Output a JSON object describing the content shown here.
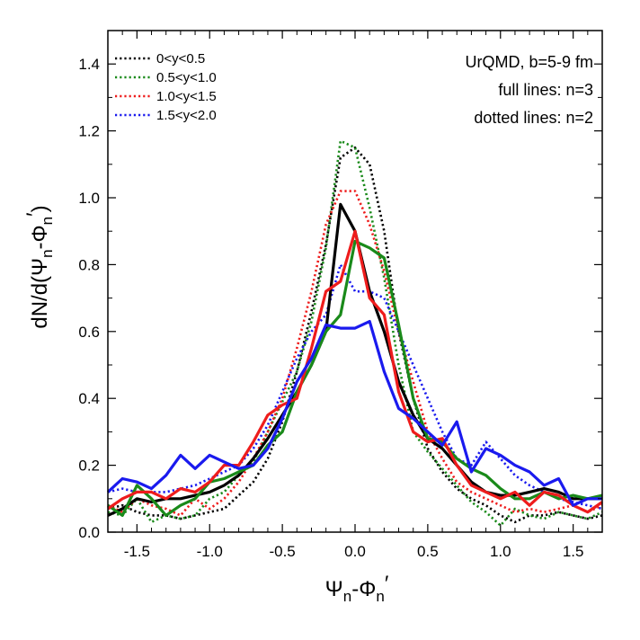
{
  "chart_data": {
    "type": "line",
    "xlabel": {
      "main": "Ψ",
      "sub1": "n",
      "mid": "-Φ",
      "sub2": "n",
      "prime": "′"
    },
    "ylabel": {
      "pre": "dN/d(Ψ",
      "sub1": "n",
      "mid": "-Φ",
      "sub2": "n",
      "prime": "′",
      "post": ")"
    },
    "xlim": [
      -1.7,
      1.7
    ],
    "ylim": [
      0,
      1.5
    ],
    "xticks": [
      -1.5,
      -1.0,
      -0.5,
      0.0,
      0.5,
      1.0,
      1.5
    ],
    "xtick_labels": [
      "-1.5",
      "-1.0",
      "-0.5",
      "0.0",
      "0.5",
      "1.0",
      "1.5"
    ],
    "yticks": [
      0,
      0.2,
      0.4,
      0.6,
      0.8,
      1.0,
      1.2,
      1.4
    ],
    "ytick_labels": [
      "0.0",
      "0.2",
      "0.4",
      "0.6",
      "0.8",
      "1.0",
      "1.2",
      "1.4"
    ],
    "legend_position": "top-left",
    "legend": [
      {
        "label": "0<y<0.5",
        "color": "#000000"
      },
      {
        "label": "0.5<y<1.0",
        "color": "#1a8a1a"
      },
      {
        "label": "1.0<y<1.5",
        "color": "#ee1c1c"
      },
      {
        "label": "1.5<y<2.0",
        "color": "#1a1aee"
      }
    ],
    "annotations": [
      "UrQMD, b=5-9 fm",
      "full lines: n=3",
      "dotted lines: n=2"
    ],
    "series": [
      {
        "color": "#000000",
        "style": "dotted",
        "x": [
          -1.7,
          -1.6,
          -1.5,
          -1.4,
          -1.3,
          -1.2,
          -1.1,
          -1.0,
          -0.9,
          -0.8,
          -0.7,
          -0.6,
          -0.5,
          -0.4,
          -0.3,
          -0.2,
          -0.1,
          0.0,
          0.1,
          0.2,
          0.3,
          0.4,
          0.5,
          0.6,
          0.7,
          0.8,
          0.9,
          1.0,
          1.1,
          1.2,
          1.3,
          1.4,
          1.5,
          1.6,
          1.7
        ],
        "y": [
          0.07,
          0.08,
          0.06,
          0.05,
          0.05,
          0.04,
          0.05,
          0.06,
          0.07,
          0.11,
          0.15,
          0.22,
          0.33,
          0.48,
          0.66,
          0.86,
          1.12,
          1.15,
          1.1,
          0.9,
          0.6,
          0.4,
          0.25,
          0.18,
          0.13,
          0.1,
          0.08,
          0.05,
          0.03,
          0.05,
          0.05,
          0.06,
          0.05,
          0.04,
          0.05
        ]
      },
      {
        "color": "#1a8a1a",
        "style": "dotted",
        "x": [
          -1.7,
          -1.6,
          -1.5,
          -1.4,
          -1.3,
          -1.2,
          -1.1,
          -1.0,
          -0.9,
          -0.8,
          -0.7,
          -0.6,
          -0.5,
          -0.4,
          -0.3,
          -0.2,
          -0.1,
          0.0,
          0.1,
          0.2,
          0.3,
          0.4,
          0.5,
          0.6,
          0.7,
          0.8,
          0.9,
          1.0,
          1.1,
          1.2,
          1.3,
          1.4,
          1.5,
          1.6,
          1.7
        ],
        "y": [
          0.06,
          0.05,
          0.1,
          0.03,
          0.05,
          0.04,
          0.05,
          0.1,
          0.12,
          0.17,
          0.21,
          0.3,
          0.39,
          0.48,
          0.63,
          0.85,
          1.17,
          1.15,
          0.97,
          0.76,
          0.5,
          0.3,
          0.24,
          0.19,
          0.14,
          0.09,
          0.06,
          0.02,
          0.07,
          0.05,
          0.04,
          0.06,
          0.05,
          0.04,
          0.06
        ]
      },
      {
        "color": "#ee1c1c",
        "style": "dotted",
        "x": [
          -1.7,
          -1.6,
          -1.5,
          -1.4,
          -1.3,
          -1.2,
          -1.1,
          -1.0,
          -0.9,
          -0.8,
          -0.7,
          -0.6,
          -0.5,
          -0.4,
          -0.3,
          -0.2,
          -0.1,
          0.0,
          0.1,
          0.2,
          0.3,
          0.4,
          0.5,
          0.6,
          0.7,
          0.8,
          0.9,
          1.0,
          1.1,
          1.2,
          1.3,
          1.4,
          1.5,
          1.6,
          1.7
        ],
        "y": [
          0.08,
          0.06,
          0.1,
          0.08,
          0.07,
          0.05,
          0.1,
          0.07,
          0.1,
          0.15,
          0.22,
          0.3,
          0.4,
          0.55,
          0.72,
          0.92,
          1.02,
          1.02,
          0.92,
          0.78,
          0.6,
          0.45,
          0.3,
          0.22,
          0.15,
          0.12,
          0.1,
          0.08,
          0.06,
          0.07,
          0.06,
          0.07,
          0.08,
          0.06,
          0.08
        ]
      },
      {
        "color": "#1a1aee",
        "style": "dotted",
        "x": [
          -1.7,
          -1.6,
          -1.5,
          -1.4,
          -1.3,
          -1.2,
          -1.1,
          -1.0,
          -0.9,
          -0.8,
          -0.7,
          -0.6,
          -0.5,
          -0.4,
          -0.3,
          -0.2,
          -0.1,
          0.0,
          0.1,
          0.2,
          0.3,
          0.4,
          0.5,
          0.6,
          0.7,
          0.8,
          0.9,
          1.0,
          1.1,
          1.2,
          1.3,
          1.4,
          1.5,
          1.6,
          1.7
        ],
        "y": [
          0.12,
          0.13,
          0.12,
          0.12,
          0.12,
          0.13,
          0.14,
          0.16,
          0.18,
          0.2,
          0.25,
          0.32,
          0.42,
          0.52,
          0.6,
          0.65,
          0.8,
          0.72,
          0.72,
          0.7,
          0.6,
          0.5,
          0.4,
          0.3,
          0.22,
          0.2,
          0.27,
          0.22,
          0.17,
          0.14,
          0.12,
          0.1,
          0.09,
          0.08,
          0.07
        ]
      },
      {
        "color": "#000000",
        "style": "solid",
        "x": [
          -1.7,
          -1.6,
          -1.5,
          -1.4,
          -1.3,
          -1.2,
          -1.1,
          -1.0,
          -0.9,
          -0.8,
          -0.7,
          -0.6,
          -0.5,
          -0.4,
          -0.3,
          -0.2,
          -0.1,
          0.0,
          0.1,
          0.2,
          0.3,
          0.4,
          0.5,
          0.6,
          0.7,
          0.8,
          0.9,
          1.0,
          1.1,
          1.2,
          1.3,
          1.4,
          1.5,
          1.6,
          1.7
        ],
        "y": [
          0.05,
          0.07,
          0.1,
          0.09,
          0.1,
          0.1,
          0.11,
          0.12,
          0.14,
          0.17,
          0.22,
          0.28,
          0.35,
          0.42,
          0.5,
          0.6,
          0.98,
          0.9,
          0.72,
          0.6,
          0.45,
          0.35,
          0.28,
          0.25,
          0.2,
          0.15,
          0.12,
          0.11,
          0.11,
          0.12,
          0.13,
          0.12,
          0.1,
          0.1,
          0.1
        ]
      },
      {
        "color": "#1a8a1a",
        "style": "solid",
        "x": [
          -1.7,
          -1.6,
          -1.5,
          -1.4,
          -1.3,
          -1.2,
          -1.1,
          -1.0,
          -0.9,
          -0.8,
          -0.7,
          -0.6,
          -0.5,
          -0.4,
          -0.3,
          -0.2,
          -0.1,
          0.0,
          0.1,
          0.2,
          0.3,
          0.4,
          0.5,
          0.6,
          0.7,
          0.8,
          0.9,
          1.0,
          1.1,
          1.2,
          1.3,
          1.4,
          1.5,
          1.6,
          1.7
        ],
        "y": [
          0.08,
          0.05,
          0.14,
          0.1,
          0.05,
          0.08,
          0.1,
          0.15,
          0.16,
          0.18,
          0.2,
          0.26,
          0.3,
          0.42,
          0.5,
          0.6,
          0.65,
          0.87,
          0.85,
          0.82,
          0.62,
          0.4,
          0.28,
          0.27,
          0.22,
          0.19,
          0.17,
          0.13,
          0.1,
          0.1,
          0.12,
          0.1,
          0.11,
          0.1,
          0.11
        ]
      },
      {
        "color": "#ee1c1c",
        "style": "solid",
        "x": [
          -1.7,
          -1.6,
          -1.5,
          -1.4,
          -1.3,
          -1.2,
          -1.1,
          -1.0,
          -0.9,
          -0.8,
          -0.7,
          -0.6,
          -0.5,
          -0.4,
          -0.3,
          -0.2,
          -0.1,
          0.0,
          0.1,
          0.2,
          0.3,
          0.4,
          0.5,
          0.6,
          0.7,
          0.8,
          0.9,
          1.0,
          1.1,
          1.2,
          1.3,
          1.4,
          1.5,
          1.6,
          1.7
        ],
        "y": [
          0.07,
          0.1,
          0.12,
          0.12,
          0.1,
          0.13,
          0.12,
          0.15,
          0.2,
          0.2,
          0.27,
          0.35,
          0.38,
          0.4,
          0.55,
          0.72,
          0.75,
          0.9,
          0.7,
          0.65,
          0.42,
          0.3,
          0.27,
          0.28,
          0.2,
          0.14,
          0.12,
          0.1,
          0.12,
          0.08,
          0.12,
          0.11,
          0.08,
          0.06,
          0.09
        ]
      },
      {
        "color": "#1a1aee",
        "style": "solid",
        "x": [
          -1.7,
          -1.6,
          -1.5,
          -1.4,
          -1.3,
          -1.2,
          -1.1,
          -1.0,
          -0.9,
          -0.8,
          -0.7,
          -0.6,
          -0.5,
          -0.4,
          -0.3,
          -0.2,
          -0.1,
          0.0,
          0.1,
          0.2,
          0.3,
          0.4,
          0.5,
          0.6,
          0.7,
          0.8,
          0.9,
          1.0,
          1.1,
          1.2,
          1.3,
          1.4,
          1.5,
          1.6,
          1.7
        ],
        "y": [
          0.12,
          0.16,
          0.15,
          0.13,
          0.17,
          0.23,
          0.19,
          0.23,
          0.21,
          0.19,
          0.2,
          0.25,
          0.34,
          0.45,
          0.52,
          0.62,
          0.61,
          0.61,
          0.63,
          0.48,
          0.37,
          0.34,
          0.3,
          0.26,
          0.33,
          0.18,
          0.25,
          0.23,
          0.2,
          0.18,
          0.14,
          0.16,
          0.08,
          0.1,
          0.1
        ]
      }
    ]
  }
}
